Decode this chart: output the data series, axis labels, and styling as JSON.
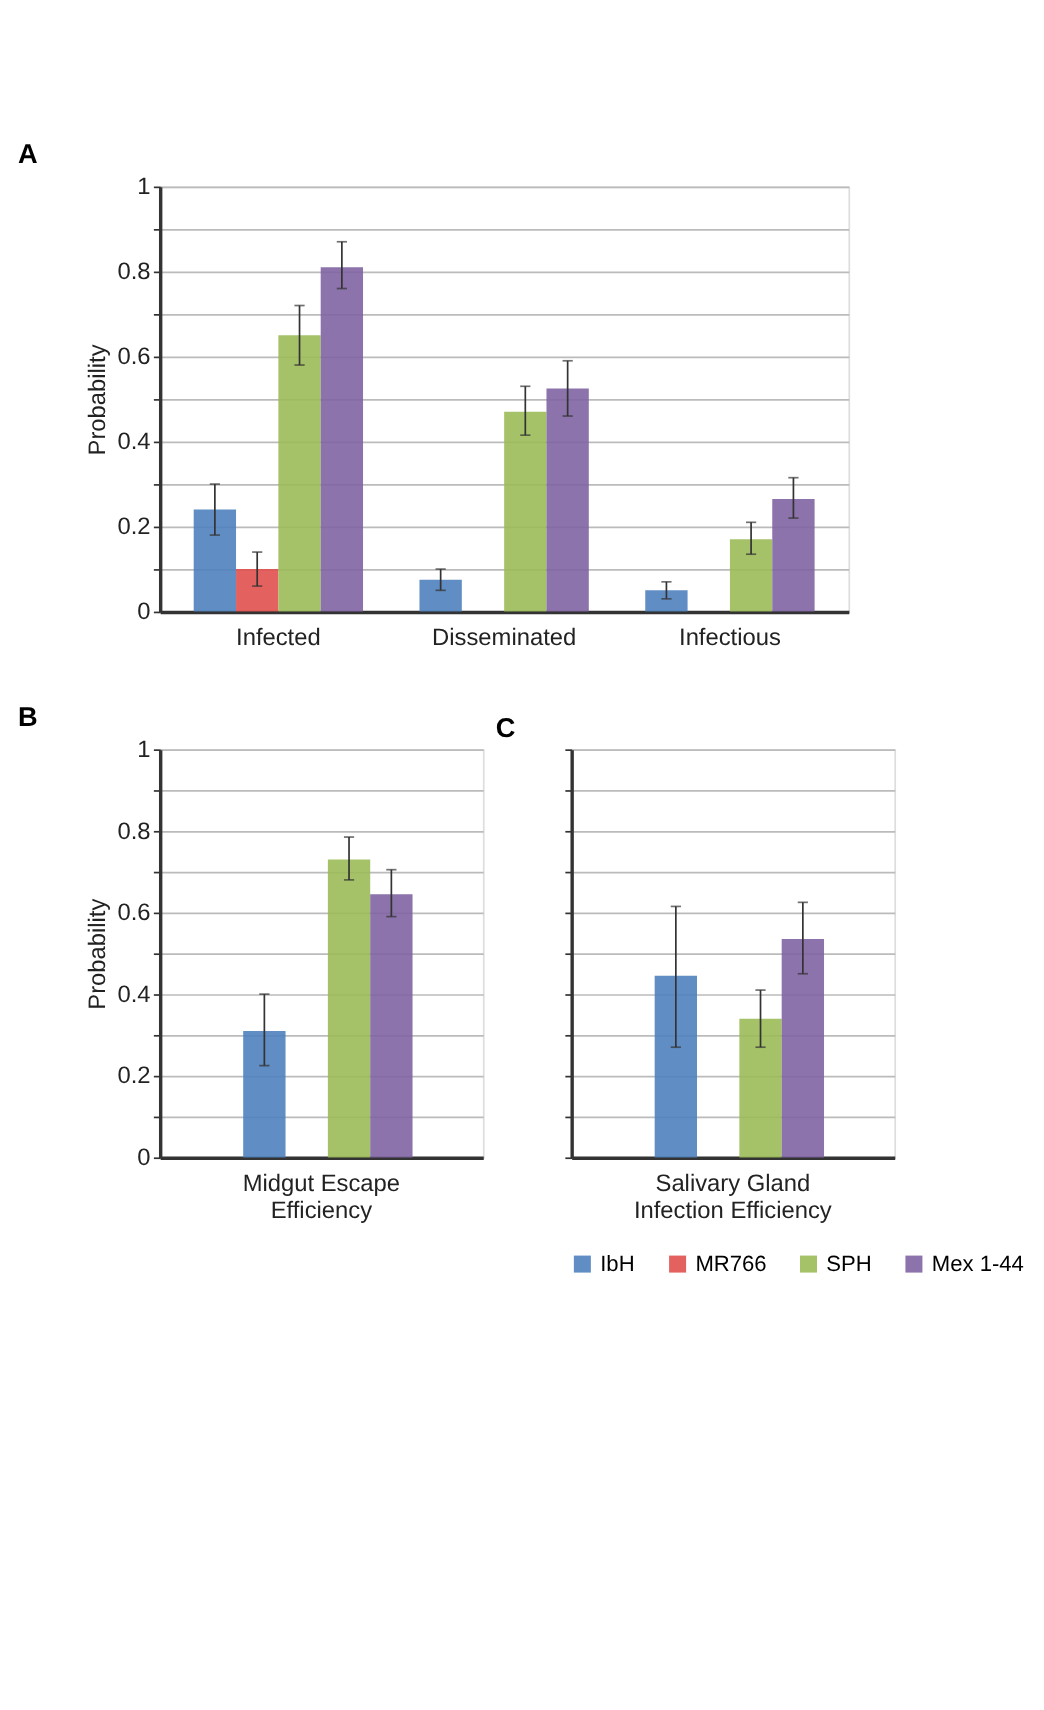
{
  "chart_data": [
    {
      "type": "bar",
      "title": "A",
      "ylabel": "Probability",
      "categories": [
        "Infected",
        "Disseminated",
        "Infectious"
      ],
      "ylim": [
        0,
        1
      ],
      "yticks": [
        0,
        {
          "value": 0.1,
          "label": null
        },
        0.2,
        {
          "value": 0.3,
          "label": null
        },
        0.4,
        {
          "value": 0.5,
          "label": null
        },
        0.6,
        {
          "value": 0.7,
          "label": null
        },
        0.8,
        {
          "value": 0.9,
          "label": null
        },
        1
      ],
      "grid": "y",
      "legend": "bottom",
      "series": [
        {
          "name": "IbH",
          "color": "#4f81bd",
          "values": [
            0.24,
            0.075,
            0.05
          ],
          "errors": [
            [
              0.18,
              0.3
            ],
            [
              0.05,
              0.1
            ],
            [
              0.03,
              0.07
            ]
          ]
        },
        {
          "name": "MR766",
          "color": "#e0504d",
          "values": [
            0.1,
            null,
            null
          ],
          "errors": [
            [
              0.06,
              0.14
            ],
            null,
            null
          ]
        },
        {
          "name": "SPH",
          "color": "#9bbb59",
          "values": [
            0.65,
            0.47,
            0.17
          ],
          "errors": [
            [
              0.58,
              0.72
            ],
            [
              0.415,
              0.53
            ],
            [
              0.135,
              0.21
            ]
          ]
        },
        {
          "name": "Mex 1-44",
          "color": "#8064a2",
          "values": [
            0.81,
            0.525,
            0.265
          ],
          "errors": [
            [
              0.76,
              0.87
            ],
            [
              0.46,
              0.59
            ],
            [
              0.22,
              0.315
            ]
          ]
        }
      ]
    },
    {
      "type": "bar",
      "title": "B",
      "ylabel": "Probability",
      "categories": [
        "Midgut Escape Efficiency"
      ],
      "ylim": [
        0,
        1
      ],
      "yticks": [
        0,
        {
          "value": 0.1,
          "label": null
        },
        0.2,
        {
          "value": 0.3,
          "label": null
        },
        0.4,
        {
          "value": 0.5,
          "label": null
        },
        0.6,
        {
          "value": 0.7,
          "label": null
        },
        0.8,
        {
          "value": 0.9,
          "label": null
        },
        1
      ],
      "grid": "y",
      "series": [
        {
          "color": "#4f81bd",
          "values": [
            0.31
          ],
          "errors": [
            [
              0.225,
              0.4
            ]
          ]
        },
        {
          "color": "#e0504d",
          "values": [
            null
          ],
          "errors": [
            null
          ]
        },
        {
          "color": "#9bbb59",
          "values": [
            0.73
          ],
          "errors": [
            [
              0.68,
              0.785
            ]
          ]
        },
        {
          "color": "#8064a2",
          "values": [
            0.645
          ],
          "errors": [
            [
              0.59,
              0.705
            ]
          ]
        }
      ]
    },
    {
      "type": "bar",
      "title": "C",
      "categories": [
        "Salivary Gland Infection Efficiency"
      ],
      "ylim": [
        0,
        1
      ],
      "yticks": [
        0,
        {
          "value": 0.1,
          "label": null
        },
        0.2,
        {
          "value": 0.3,
          "label": null
        },
        0.4,
        {
          "value": 0.5,
          "label": null
        },
        0.6,
        {
          "value": 0.7,
          "label": null
        },
        0.8,
        {
          "value": 0.9,
          "label": null
        },
        1
      ],
      "grid": "y",
      "tick_labels": "x",
      "series": [
        {
          "color": "#4f81bd",
          "values": [
            0.445
          ],
          "errors": [
            [
              0.27,
              0.615
            ]
          ]
        },
        {
          "color": "#e0504d",
          "values": [
            null
          ],
          "errors": [
            null
          ]
        },
        {
          "color": "#9bbb59",
          "values": [
            0.34
          ],
          "errors": [
            [
              0.27,
              0.41
            ]
          ]
        },
        {
          "color": "#8064a2",
          "values": [
            0.535
          ],
          "errors": [
            [
              0.45,
              0.625
            ]
          ]
        }
      ]
    }
  ]
}
